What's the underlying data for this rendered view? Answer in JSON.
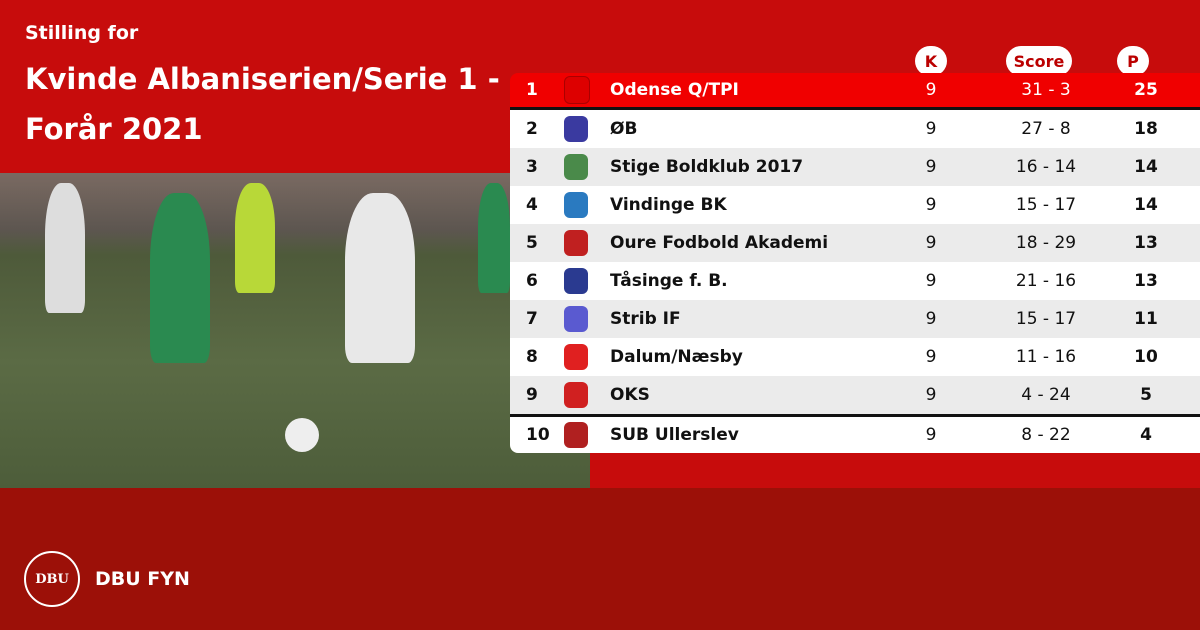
{
  "header": {
    "subtitle": "Stilling for",
    "title": "Kvinde Albaniserien/Serie 1 - Forår 2021"
  },
  "columns": {
    "k": "K",
    "score": "Score",
    "p": "P"
  },
  "rows": [
    {
      "pos": "1",
      "team": "Odense Q/TPI",
      "k": "9",
      "score": "31 - 3",
      "p": "25",
      "logo_color": "#d00"
    },
    {
      "pos": "2",
      "team": "ØB",
      "k": "9",
      "score": "27 - 8",
      "p": "18",
      "logo_color": "#3a3aa0"
    },
    {
      "pos": "3",
      "team": "Stige Boldklub 2017",
      "k": "9",
      "score": "16 - 14",
      "p": "14",
      "logo_color": "#4a8a4a"
    },
    {
      "pos": "4",
      "team": "Vindinge BK",
      "k": "9",
      "score": "15 - 17",
      "p": "14",
      "logo_color": "#2a7ac0"
    },
    {
      "pos": "5",
      "team": "Oure Fodbold Akademi",
      "k": "9",
      "score": "18 - 29",
      "p": "13",
      "logo_color": "#c02020"
    },
    {
      "pos": "6",
      "team": "Tåsinge  f. B.",
      "k": "9",
      "score": "21 - 16",
      "p": "13",
      "logo_color": "#2a3a90"
    },
    {
      "pos": "7",
      "team": "Strib IF",
      "k": "9",
      "score": "15 - 17",
      "p": "11",
      "logo_color": "#5a5ad0"
    },
    {
      "pos": "8",
      "team": "Dalum/Næsby",
      "k": "9",
      "score": "11 - 16",
      "p": "10",
      "logo_color": "#e02020"
    },
    {
      "pos": "9",
      "team": "OKS",
      "k": "9",
      "score": "4 - 24",
      "p": "5",
      "logo_color": "#d02020"
    },
    {
      "pos": "10",
      "team": "SUB Ullerslev",
      "k": "9",
      "score": "8 - 22",
      "p": "4",
      "logo_color": "#b02020"
    }
  ],
  "footer": {
    "brand": "DBU FYN",
    "crest_text": "DBU"
  }
}
